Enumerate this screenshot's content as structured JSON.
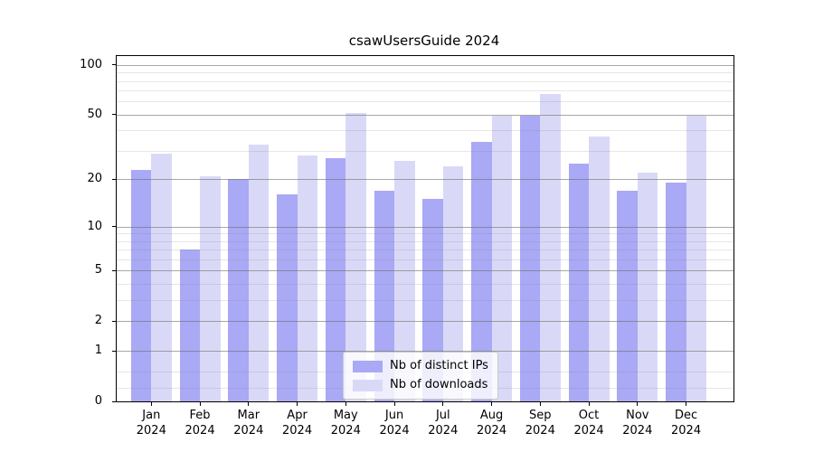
{
  "chart_data": {
    "type": "bar",
    "title": "csawUsersGuide 2024",
    "categories": [
      "Jan 2024",
      "Feb 2024",
      "Mar 2024",
      "Apr 2024",
      "May 2024",
      "Jun 2024",
      "Jul 2024",
      "Aug 2024",
      "Sep 2024",
      "Oct 2024",
      "Nov 2024",
      "Dec 2024"
    ],
    "series": [
      {
        "name": "Nb of distinct IPs",
        "color": "#a9a9f5",
        "values": [
          23,
          7,
          20,
          16,
          27,
          17,
          15,
          34,
          49,
          25,
          17,
          19
        ]
      },
      {
        "name": "Nb of downloads",
        "color": "#d9d9f7",
        "values": [
          29,
          21,
          33,
          28,
          51,
          26,
          24,
          49,
          67,
          37,
          22,
          49
        ]
      }
    ],
    "xlabel": "",
    "ylabel": "",
    "yscale": "log1p",
    "ylim": [
      0,
      113
    ],
    "yticks": [
      0,
      1,
      2,
      5,
      10,
      20,
      50,
      100
    ],
    "minor_yticks": [
      0.2,
      0.5,
      3,
      4,
      6,
      7,
      8,
      9,
      30,
      40,
      60,
      70,
      80,
      90
    ],
    "grid": true,
    "grid_above_bars": true,
    "legend": {
      "location": "lower center"
    }
  },
  "palette": {
    "axis": "#000000",
    "major_grid": "#9c9c9c",
    "minor_grid": "#e4e4e4",
    "legend_border": "#cccccc",
    "background": "#ffffff"
  }
}
